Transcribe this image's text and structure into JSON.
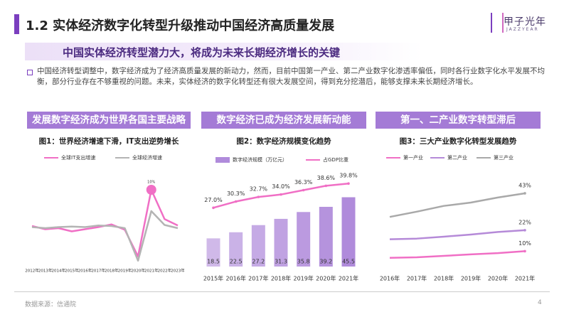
{
  "header": {
    "title": "1.2 实体经济数字化转型升级推动中国经济高质量发展",
    "subtitle": "中国实体经济转型潜力大，将成为未来长期经济增长的关键"
  },
  "logo": {
    "name": "甲子光年",
    "sub": "JAZZYEAR"
  },
  "paragraph": "中国经济转型调整中，数字经济成为了经济高质量发展的新动力，然而，目前中国第一产业、第二产业数字化渗透率偏低，同时各行业数字化水平发展不均衡，部分行业存在不够重视的问题。未来，实体经济的数字化转型还有很大发展空间，得到充分挖潜后，能够支撑未来长期经济增长。",
  "panels": [
    "发展数字经济成为世界各国主要战略",
    "数字经济已成为经济发展新动能",
    "第一、二产业数字转型滞后"
  ],
  "chart_data": [
    {
      "type": "line",
      "title": "图1：世界经济增速下滑，IT支出逆势增长",
      "categories": [
        "2012年",
        "2013年",
        "2014年",
        "2015年",
        "2016年",
        "2017年",
        "2018年",
        "2019年",
        "2020年",
        "2021年",
        "2022年",
        "2023年"
      ],
      "series": [
        {
          "name": "全球IT支出增速",
          "color": "#f06fc5",
          "values": [
            3.2,
            2.6,
            2.8,
            2.2,
            2.6,
            3.0,
            3.5,
            2.5,
            -2.5,
            10,
            4.5,
            3.3
          ],
          "value_labels": [
            null,
            null,
            null,
            null,
            null,
            null,
            null,
            null,
            null,
            "10%",
            null,
            null
          ]
        },
        {
          "name": "全球经济增速",
          "color": "#b4b4b4",
          "values": [
            3.0,
            2.8,
            3.0,
            3.1,
            3.0,
            3.3,
            3.2,
            2.8,
            -3.3,
            6.0,
            3.4,
            2.8
          ]
        }
      ],
      "ylim": [
        -6,
        12
      ]
    },
    {
      "type": "bar",
      "title": "图2：数字经济规模变化趋势",
      "categories": [
        "2015年",
        "2016年",
        "2017年",
        "2018年",
        "2019年",
        "2020年",
        "2021年"
      ],
      "series": [
        {
          "name": "数字经济规模（万亿元）",
          "type": "bar",
          "color": "#b08bdb",
          "data_labels": true,
          "values": [
            18.5,
            22.5,
            27.2,
            31.3,
            35.8,
            39.2,
            45.5
          ]
        },
        {
          "name": "占GDP比重",
          "type": "line",
          "axis": "y2",
          "color": "#f06fc5",
          "values": [
            27.0,
            30.3,
            32.7,
            34.0,
            36.3,
            38.6,
            39.8
          ],
          "value_labels": [
            "27.0%",
            "30.3%",
            "32.7%",
            "34.0%",
            "36.3%",
            "38.6%",
            "39.8%"
          ]
        }
      ],
      "ylim": [
        0,
        56
      ],
      "y2lim": [
        -4,
        41
      ]
    },
    {
      "type": "line",
      "title": "图3：三大产业数字化转型发展趋势",
      "categories": [
        "2016年",
        "2017年",
        "2018年",
        "2019年",
        "2020年",
        "2021年"
      ],
      "series": [
        {
          "name": "第一产业",
          "color": "#f06fc5",
          "values": [
            6.2,
            6.5,
            7.3,
            8.2,
            8.9,
            10.0
          ],
          "value_labels": [
            null,
            null,
            null,
            null,
            null,
            "10%"
          ]
        },
        {
          "name": "第二产业",
          "color": "#b58ad8",
          "values": [
            16.8,
            17.2,
            18.3,
            19.5,
            21.0,
            22.0
          ],
          "value_labels": [
            null,
            null,
            null,
            null,
            null,
            "22%"
          ]
        },
        {
          "name": "第三产业",
          "color": "#a9a9a9",
          "values": [
            29.6,
            32.6,
            35.9,
            37.8,
            40.7,
            43.1
          ],
          "value_labels": [
            null,
            null,
            null,
            null,
            null,
            "43%"
          ]
        }
      ],
      "ylim": [
        0,
        50
      ]
    }
  ],
  "footer": {
    "source": "数据来源：信通院",
    "page_number": "4"
  }
}
